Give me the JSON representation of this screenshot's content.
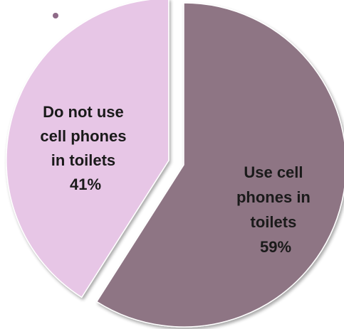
{
  "chart_data": {
    "type": "pie",
    "slices": [
      {
        "label_lines": [
          "Use cell",
          "phones in",
          "toilets",
          "59%"
        ],
        "value": 59,
        "color": "#8e7484",
        "exploded": false
      },
      {
        "label_lines": [
          "Do not use",
          "cell phones",
          "in toilets",
          "41%"
        ],
        "value": 41,
        "color": "#e7c6e6",
        "exploded": true
      }
    ],
    "legend": "none"
  }
}
